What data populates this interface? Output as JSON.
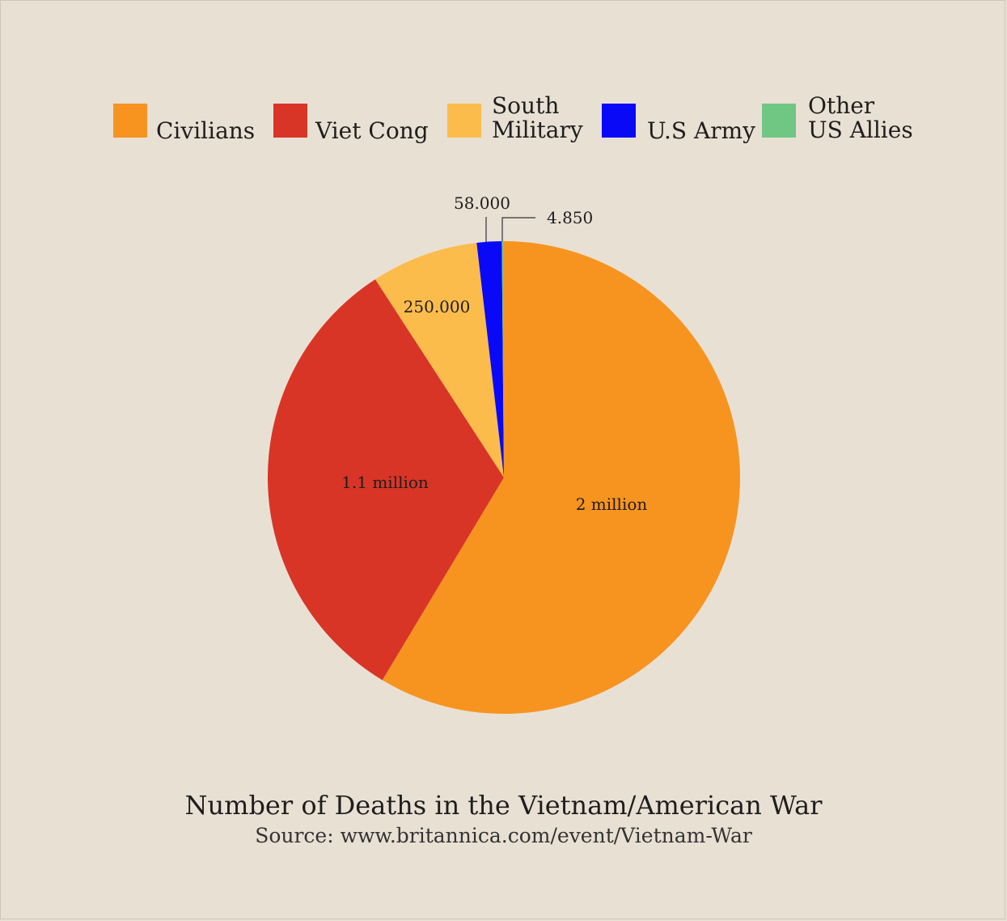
{
  "chart_data": {
    "type": "pie",
    "title": "Number of Deaths in the Vietnam/American War",
    "source": "Source: www.britannica.com/event/Vietnam-War",
    "legend_position": "top",
    "slices": [
      {
        "name": "Civilians",
        "legend_lines": [
          "Civilians"
        ],
        "value": 2000000,
        "label": "2 million",
        "color": "#f79420"
      },
      {
        "name": "Viet Cong",
        "legend_lines": [
          "Viet Cong"
        ],
        "value": 1100000,
        "label": "1.1 million",
        "color": "#d83526"
      },
      {
        "name": "South Military",
        "legend_lines": [
          "South",
          "Military"
        ],
        "value": 250000,
        "label": "250.000",
        "color": "#fbbc4c"
      },
      {
        "name": "U.S Army",
        "legend_lines": [
          "U.S Army"
        ],
        "value": 58000,
        "label": "58.000",
        "color": "#0a09f7"
      },
      {
        "name": "Other US Allies",
        "legend_lines": [
          "Other",
          "US Allies"
        ],
        "value": 4850,
        "label": "4.850",
        "color": "#6fc783"
      }
    ]
  }
}
